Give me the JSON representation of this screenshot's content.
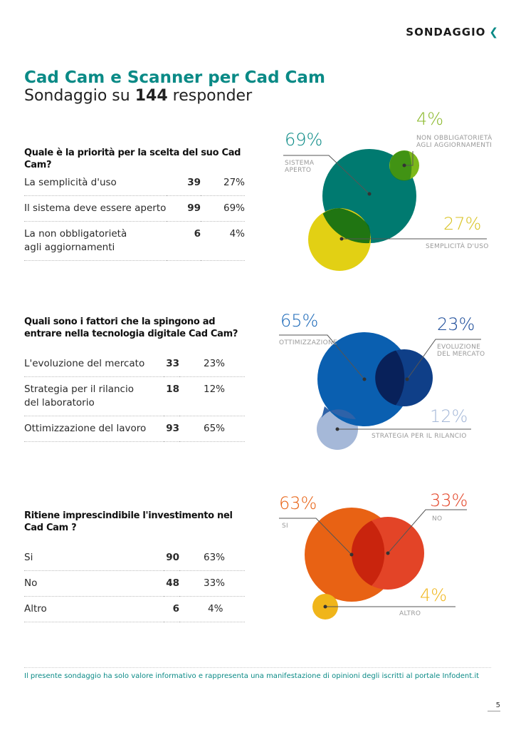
{
  "header": {
    "section": "SONDAGGIO",
    "chevron": "❮"
  },
  "title": "Cad Cam e Scanner per Cad Cam",
  "subtitle": {
    "prefix": "Sondaggio su",
    "count": "144",
    "suffix": "responder"
  },
  "surveys": [
    {
      "question": "Quale è la priorità per la scelta del suo Cad Cam?",
      "rows": [
        {
          "label": "La semplicità d'uso",
          "count": "39",
          "pct": "27%"
        },
        {
          "label": "Il sistema deve essere aperto",
          "count": "99",
          "pct": "69%"
        },
        {
          "label": "La non obbligatorietà\nagli aggiornamenti",
          "count": "6",
          "pct": "4%"
        }
      ],
      "bubbles": [
        {
          "pct": "69%",
          "label": "SISTEMA\nAPERTO",
          "color": "#007a70"
        },
        {
          "pct": "4%",
          "label": "NON OBBLIGATORIETÀ\nAGLI AGGIORNAMENTI",
          "color": "#7cb81a"
        },
        {
          "pct": "27%",
          "label": "SEMPLICITÀ D'USO",
          "color": "#e2d014"
        }
      ]
    },
    {
      "question": "Quali sono i fattori che la spingono ad entrare nella tecnologia digitale Cad Cam?",
      "rows": [
        {
          "label": "L'evoluzione del mercato",
          "count": "33",
          "pct": "23%"
        },
        {
          "label": "Strategia per il rilancio\ndel laboratorio",
          "count": "18",
          "pct": "12%"
        },
        {
          "label": "Ottimizzazione del lavoro",
          "count": "93",
          "pct": "65%"
        }
      ],
      "bubbles": [
        {
          "pct": "65%",
          "label": "OTTIMIZZAZIONE",
          "color": "#0a5fb0"
        },
        {
          "pct": "23%",
          "label": "EVOLUZIONE\nDEL MERCATO",
          "color": "#0f3f88"
        },
        {
          "pct": "12%",
          "label": "STRATEGIA PER IL RILANCIO",
          "color": "#a5b8d8"
        }
      ]
    },
    {
      "question": "Ritiene imprescindibile l'investimento nel Cad Cam ?",
      "rows": [
        {
          "label": "Si",
          "count": "90",
          "pct": "63%"
        },
        {
          "label": "No",
          "count": "48",
          "pct": "33%"
        },
        {
          "label": "Altro",
          "count": "6",
          "pct": "4%"
        }
      ],
      "bubbles": [
        {
          "pct": "63%",
          "label": "SI",
          "color": "#e86214"
        },
        {
          "pct": "33%",
          "label": "NO",
          "color": "#e34427"
        },
        {
          "pct": "4%",
          "label": "ALTRO",
          "color": "#f0b51a"
        }
      ]
    }
  ],
  "footer": "Il presente sondaggio ha solo valore informativo e rappresenta una manifestazione di opinioni degli iscritti al portale Infodent.it",
  "page_number": "5"
}
